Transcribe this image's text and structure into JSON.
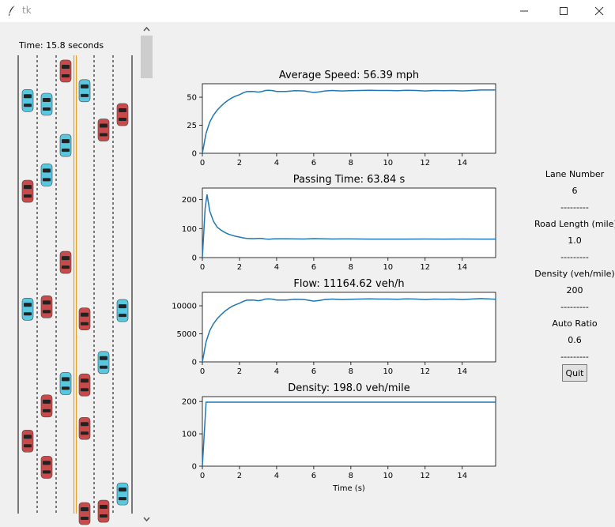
{
  "window": {
    "title": "tk"
  },
  "simulation": {
    "time_label": "Time: 15.8 seconds"
  },
  "road": {
    "lanes": 6,
    "cars": [
      {
        "lane": 0,
        "pos": 0.117,
        "type": "auto"
      },
      {
        "lane": 0,
        "pos": 0.311,
        "type": "manual"
      },
      {
        "lane": 0,
        "pos": 0.563,
        "type": "auto"
      },
      {
        "lane": 0,
        "pos": 0.845,
        "type": "manual"
      },
      {
        "lane": 1,
        "pos": 0.125,
        "type": "auto"
      },
      {
        "lane": 1,
        "pos": 0.276,
        "type": "auto"
      },
      {
        "lane": 1,
        "pos": 0.558,
        "type": "manual"
      },
      {
        "lane": 1,
        "pos": 0.77,
        "type": "manual"
      },
      {
        "lane": 1,
        "pos": 0.901,
        "type": "manual"
      },
      {
        "lane": 2,
        "pos": 0.054,
        "type": "manual"
      },
      {
        "lane": 2,
        "pos": 0.213,
        "type": "auto"
      },
      {
        "lane": 2,
        "pos": 0.463,
        "type": "manual"
      },
      {
        "lane": 2,
        "pos": 0.722,
        "type": "auto"
      },
      {
        "lane": 3,
        "pos": 0.096,
        "type": "auto"
      },
      {
        "lane": 3,
        "pos": 0.584,
        "type": "manual"
      },
      {
        "lane": 3,
        "pos": 0.725,
        "type": "manual"
      },
      {
        "lane": 3,
        "pos": 0.818,
        "type": "manual"
      },
      {
        "lane": 3,
        "pos": 1.0,
        "type": "manual"
      },
      {
        "lane": 4,
        "pos": 0.18,
        "type": "manual"
      },
      {
        "lane": 4,
        "pos": 0.677,
        "type": "auto"
      },
      {
        "lane": 4,
        "pos": 0.995,
        "type": "manual"
      },
      {
        "lane": 5,
        "pos": 0.147,
        "type": "manual"
      },
      {
        "lane": 5,
        "pos": 0.566,
        "type": "auto"
      },
      {
        "lane": 5,
        "pos": 0.958,
        "type": "auto"
      }
    ]
  },
  "colors": {
    "auto_car": "#58c8e0",
    "manual_car": "#c84a4a",
    "line": "#1f77b4",
    "center_line": "#e8a020"
  },
  "chart_data": [
    {
      "type": "line",
      "title": "Average Speed: 56.39 mph",
      "xlabel": "",
      "xlim": [
        0,
        15.8
      ],
      "ylim": [
        0,
        62
      ],
      "yticks": [
        0,
        25,
        50
      ],
      "xticks": [
        0,
        2,
        4,
        6,
        8,
        10,
        12,
        14
      ],
      "x": [
        0,
        0.2,
        0.4,
        0.6,
        0.8,
        1.0,
        1.2,
        1.4,
        1.6,
        1.8,
        2.0,
        2.2,
        2.4,
        2.6,
        2.8,
        3.0,
        3.2,
        3.4,
        3.6,
        3.8,
        4.0,
        4.5,
        5.0,
        5.5,
        6.0,
        6.3,
        6.6,
        7.0,
        7.5,
        8.0,
        8.5,
        9.0,
        9.5,
        10.0,
        10.5,
        11.0,
        11.5,
        12.0,
        12.5,
        13.0,
        13.5,
        14.0,
        14.5,
        15.0,
        15.8
      ],
      "y": [
        0,
        18,
        28,
        34,
        38.5,
        42,
        45,
        47.5,
        49.5,
        51,
        52.3,
        54,
        55,
        55.2,
        55,
        54.5,
        55,
        56,
        56.2,
        55.8,
        55.2,
        55.2,
        55.8,
        55.6,
        54.2,
        54.8,
        55.6,
        56,
        55.6,
        55.8,
        56,
        56.2,
        56,
        56,
        55.8,
        56.2,
        56,
        55.6,
        56,
        55.8,
        56,
        55.6,
        56,
        56.4,
        56.4
      ]
    },
    {
      "type": "line",
      "title": "Passing Time: 63.84 s",
      "xlabel": "",
      "xlim": [
        0,
        15.8
      ],
      "ylim": [
        0,
        240
      ],
      "yticks": [
        0,
        100,
        200
      ],
      "xticks": [
        0,
        2,
        4,
        6,
        8,
        10,
        12,
        14
      ],
      "x": [
        0,
        0.15,
        0.25,
        0.4,
        0.6,
        0.8,
        1.0,
        1.2,
        1.4,
        1.6,
        1.8,
        2.0,
        2.2,
        2.4,
        2.6,
        2.8,
        3.0,
        3.2,
        3.4,
        3.6,
        3.8,
        4.0,
        4.5,
        5.0,
        5.5,
        6.0,
        6.5,
        7.0,
        7.5,
        8.0,
        8.5,
        9.0,
        10.0,
        11.0,
        12.0,
        13.0,
        14.0,
        15.0,
        15.8
      ],
      "y": [
        0,
        170,
        218,
        160,
        125,
        105,
        95,
        87,
        81,
        77,
        73.5,
        71,
        68,
        66,
        65.5,
        65.5,
        66,
        66,
        64,
        63.5,
        64.5,
        65,
        65,
        64.5,
        64.2,
        65.5,
        64.8,
        64.2,
        64.5,
        64.5,
        64,
        63.8,
        63.8,
        63.8,
        64.2,
        63.8,
        64,
        63.8,
        63.8
      ]
    },
    {
      "type": "line",
      "title": "Flow: 11164.62 veh/h",
      "xlabel": "",
      "xlim": [
        0,
        15.8
      ],
      "ylim": [
        0,
        12400
      ],
      "yticks": [
        0,
        5000,
        10000
      ],
      "xticks": [
        0,
        2,
        4,
        6,
        8,
        10,
        12,
        14
      ],
      "x": [
        0,
        0.2,
        0.4,
        0.6,
        0.8,
        1.0,
        1.2,
        1.4,
        1.6,
        1.8,
        2.0,
        2.2,
        2.4,
        2.6,
        2.8,
        3.0,
        3.2,
        3.4,
        3.6,
        3.8,
        4.0,
        4.5,
        5.0,
        5.5,
        6.0,
        6.3,
        6.6,
        7.0,
        7.5,
        8.0,
        8.5,
        9.0,
        9.5,
        10.0,
        10.5,
        11.0,
        11.5,
        12.0,
        12.5,
        13.0,
        13.5,
        14.0,
        14.5,
        15.0,
        15.8
      ],
      "y": [
        0,
        3600,
        5600,
        6800,
        7700,
        8400,
        9000,
        9500,
        9900,
        10200,
        10450,
        10800,
        11000,
        11040,
        11000,
        10900,
        11000,
        11200,
        11240,
        11160,
        11040,
        11040,
        11160,
        11120,
        10840,
        10960,
        11120,
        11200,
        11120,
        11160,
        11200,
        11240,
        11200,
        11200,
        11160,
        11240,
        11200,
        11120,
        11200,
        11160,
        11200,
        11120,
        11200,
        11280,
        11165
      ]
    },
    {
      "type": "line",
      "title": "Density: 198.0 veh/mile",
      "xlabel": "Time (s)",
      "xlim": [
        0,
        15.8
      ],
      "ylim": [
        0,
        215
      ],
      "yticks": [
        0,
        100,
        200
      ],
      "xticks": [
        0,
        2,
        4,
        6,
        8,
        10,
        12,
        14
      ],
      "x": [
        0,
        0.2,
        15.8
      ],
      "y": [
        0,
        198,
        198
      ]
    }
  ],
  "settings": {
    "lane_number_label": "Lane Number",
    "lane_number_value": "6",
    "road_length_label": "Road Length (mile)",
    "road_length_value": "1.0",
    "density_label": "Density (veh/mile)",
    "density_value": "200",
    "auto_ratio_label": "Auto Ratio",
    "auto_ratio_value": "0.6",
    "separator": "---------",
    "quit_label": "Quit"
  }
}
